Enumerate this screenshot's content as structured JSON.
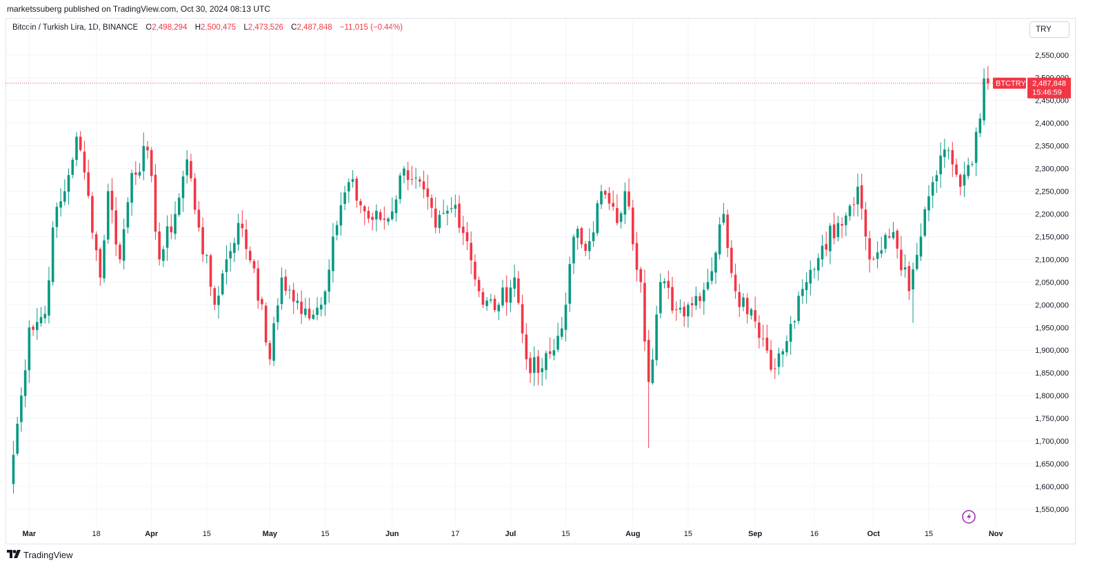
{
  "publisher_line": "marketssuberg published on TradingView.com, Oct 30, 2024 08:13 UTC",
  "legend": {
    "symbol_text": "Bitcoin / Turkish Lira, 1D, BINANCE",
    "open_label": "O",
    "open_value": "2,498,294",
    "high_label": "H",
    "high_value": "2,500,475",
    "low_label": "L",
    "low_value": "2,473,526",
    "close_label": "C",
    "close_value": "2,487,848",
    "change_text": "−11,015 (−0.44%)"
  },
  "currency_selector": "TRY",
  "price_tag": {
    "ticker": "BTCTRY",
    "price": "2,487,848",
    "countdown": "15:46:59"
  },
  "footer": {
    "brand": "TradingView",
    "logo_icon": "tradingview-logo-icon"
  },
  "colors": {
    "up": "#089981",
    "down": "#f23645",
    "grid": "#f0f3fa",
    "text": "#131722"
  },
  "chart_data": {
    "type": "candlestick",
    "symbol": "BTCTRY",
    "interval": "1D",
    "y_ticks": [
      1550000,
      1600000,
      1650000,
      1700000,
      1750000,
      1800000,
      1850000,
      1900000,
      1950000,
      2000000,
      2050000,
      2100000,
      2150000,
      2200000,
      2250000,
      2300000,
      2350000,
      2400000,
      2450000,
      2500000,
      2550000
    ],
    "y_tick_labels": [
      "1,550,000",
      "1,600,000",
      "1,650,000",
      "1,700,000",
      "1,750,000",
      "1,800,000",
      "1,850,000",
      "1,900,000",
      "1,950,000",
      "2,000,000",
      "2,050,000",
      "2,100,000",
      "2,150,000",
      "2,200,000",
      "2,250,000",
      "2,300,000",
      "2,350,000",
      "2,400,000",
      "2,450,000",
      "2,500,000",
      "2,550,000"
    ],
    "ylim": [
      1515000,
      2580000
    ],
    "x_ticks": [
      {
        "label": "Mar",
        "bold": true
      },
      {
        "label": "18",
        "bold": false
      },
      {
        "label": "Apr",
        "bold": true
      },
      {
        "label": "15",
        "bold": false
      },
      {
        "label": "May",
        "bold": true
      },
      {
        "label": "15",
        "bold": false
      },
      {
        "label": "Jun",
        "bold": true
      },
      {
        "label": "17",
        "bold": false
      },
      {
        "label": "Jul",
        "bold": true
      },
      {
        "label": "15",
        "bold": false
      },
      {
        "label": "Aug",
        "bold": true
      },
      {
        "label": "15",
        "bold": false
      },
      {
        "label": "Sep",
        "bold": true
      },
      {
        "label": "16",
        "bold": false
      },
      {
        "label": "Oct",
        "bold": true
      },
      {
        "label": "15",
        "bold": false
      },
      {
        "label": "Nov",
        "bold": true
      }
    ],
    "close_anchors": [
      [
        "2024-02-25",
        1605000
      ],
      [
        "2024-02-28",
        1800000
      ],
      [
        "2024-03-01",
        1950000
      ],
      [
        "2024-03-05",
        1980000
      ],
      [
        "2024-03-07",
        2170000
      ],
      [
        "2024-03-10",
        2250000
      ],
      [
        "2024-03-13",
        2370000
      ],
      [
        "2024-03-16",
        2240000
      ],
      [
        "2024-03-19",
        2060000
      ],
      [
        "2024-03-21",
        2250000
      ],
      [
        "2024-03-24",
        2100000
      ],
      [
        "2024-03-27",
        2290000
      ],
      [
        "2024-03-31",
        2340000
      ],
      [
        "2024-04-03",
        2100000
      ],
      [
        "2024-04-07",
        2200000
      ],
      [
        "2024-04-10",
        2320000
      ],
      [
        "2024-04-13",
        2170000
      ],
      [
        "2024-04-17",
        2000000
      ],
      [
        "2024-04-20",
        2100000
      ],
      [
        "2024-04-23",
        2180000
      ],
      [
        "2024-04-27",
        2080000
      ],
      [
        "2024-05-01",
        1880000
      ],
      [
        "2024-05-04",
        2060000
      ],
      [
        "2024-05-09",
        1980000
      ],
      [
        "2024-05-14",
        2000000
      ],
      [
        "2024-05-17",
        2150000
      ],
      [
        "2024-05-21",
        2270000
      ],
      [
        "2024-05-26",
        2190000
      ],
      [
        "2024-05-31",
        2190000
      ],
      [
        "2024-06-04",
        2300000
      ],
      [
        "2024-06-07",
        2280000
      ],
      [
        "2024-06-12",
        2170000
      ],
      [
        "2024-06-17",
        2220000
      ],
      [
        "2024-06-20",
        2140000
      ],
      [
        "2024-06-24",
        2000000
      ],
      [
        "2024-06-28",
        2000000
      ],
      [
        "2024-07-02",
        2060000
      ],
      [
        "2024-07-05",
        1880000
      ],
      [
        "2024-07-08",
        1850000
      ],
      [
        "2024-07-12",
        1900000
      ],
      [
        "2024-07-15",
        2000000
      ],
      [
        "2024-07-17",
        2150000
      ],
      [
        "2024-07-21",
        2140000
      ],
      [
        "2024-07-24",
        2250000
      ],
      [
        "2024-07-28",
        2180000
      ],
      [
        "2024-07-30",
        2250000
      ],
      [
        "2024-08-03",
        2050000
      ],
      [
        "2024-08-05",
        1830000
      ],
      [
        "2024-08-08",
        2050000
      ],
      [
        "2024-08-12",
        1990000
      ],
      [
        "2024-08-15",
        2000000
      ],
      [
        "2024-08-20",
        2050000
      ],
      [
        "2024-08-24",
        2200000
      ],
      [
        "2024-08-27",
        2030000
      ],
      [
        "2024-08-31",
        1990000
      ],
      [
        "2024-09-06",
        1860000
      ],
      [
        "2024-09-09",
        1920000
      ],
      [
        "2024-09-14",
        2050000
      ],
      [
        "2024-09-18",
        2130000
      ],
      [
        "2024-09-22",
        2180000
      ],
      [
        "2024-09-27",
        2260000
      ],
      [
        "2024-09-30",
        2100000
      ],
      [
        "2024-10-03",
        2120000
      ],
      [
        "2024-10-06",
        2160000
      ],
      [
        "2024-10-10",
        2030000
      ],
      [
        "2024-10-13",
        2150000
      ],
      [
        "2024-10-16",
        2270000
      ],
      [
        "2024-10-20",
        2340000
      ],
      [
        "2024-10-23",
        2260000
      ],
      [
        "2024-10-26",
        2310000
      ],
      [
        "2024-10-28",
        2410000
      ],
      [
        "2024-10-29",
        2498294
      ],
      [
        "2024-10-30",
        2487848
      ]
    ],
    "notable_wicks": [
      [
        "2024-08-05",
        1685000
      ],
      [
        "2024-10-11",
        1960000
      ]
    ],
    "last": {
      "open": 2498294,
      "high": 2500475,
      "low": 2473526,
      "close": 2487848
    }
  }
}
